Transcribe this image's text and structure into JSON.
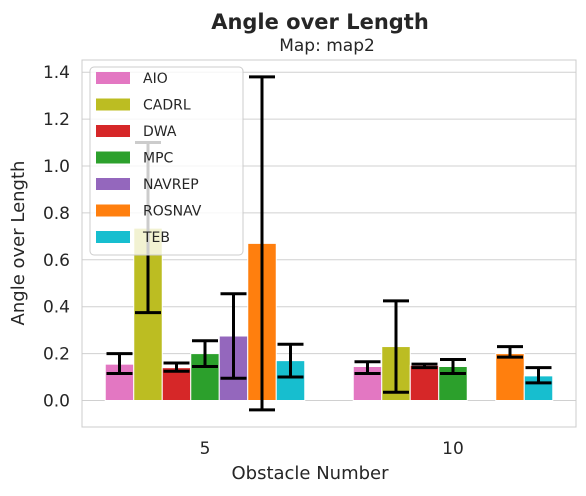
{
  "chart_data": {
    "type": "bar",
    "title": "Angle over Length",
    "subtitle": "Map: map2",
    "xlabel": "Obstacle Number",
    "ylabel": "Angle over Length",
    "categories": [
      "5",
      "10"
    ],
    "ylim": [
      -0.12,
      1.45
    ],
    "yticks": [
      0.0,
      0.2,
      0.4,
      0.6,
      0.8,
      1.0,
      1.2,
      1.4
    ],
    "ytick_labels": [
      "0.0",
      "0.2",
      "0.4",
      "0.6",
      "0.8",
      "1.0",
      "1.2",
      "1.4"
    ],
    "grid": "horizontal",
    "legend_position": "top-left",
    "series": [
      {
        "name": "AIO",
        "color": "#e377c2",
        "values": [
          0.155,
          0.145
        ],
        "err_low": [
          0.115,
          0.115
        ],
        "err_high": [
          0.2,
          0.165
        ]
      },
      {
        "name": "CADRL",
        "color": "#bcbd22",
        "values": [
          0.735,
          0.23
        ],
        "err_low": [
          0.375,
          0.035
        ],
        "err_high": [
          1.1,
          0.425
        ]
      },
      {
        "name": "DWA",
        "color": "#d62728",
        "values": [
          0.14,
          0.15
        ],
        "err_low": [
          0.125,
          0.14
        ],
        "err_high": [
          0.16,
          0.155
        ]
      },
      {
        "name": "MPC",
        "color": "#2ca02c",
        "values": [
          0.2,
          0.145
        ],
        "err_low": [
          0.145,
          0.115
        ],
        "err_high": [
          0.255,
          0.175
        ]
      },
      {
        "name": "NAVREP",
        "color": "#9467bd",
        "values": [
          0.275,
          null
        ],
        "err_low": [
          0.095,
          null
        ],
        "err_high": [
          0.455,
          null
        ]
      },
      {
        "name": "ROSNAV",
        "color": "#ff7f0e",
        "values": [
          0.67,
          0.2
        ],
        "err_low": [
          -0.04,
          0.185
        ],
        "err_high": [
          1.38,
          0.23
        ]
      },
      {
        "name": "TEB",
        "color": "#17becf",
        "values": [
          0.17,
          0.105
        ],
        "err_low": [
          0.1,
          0.075
        ],
        "err_high": [
          0.24,
          0.14
        ]
      }
    ]
  }
}
